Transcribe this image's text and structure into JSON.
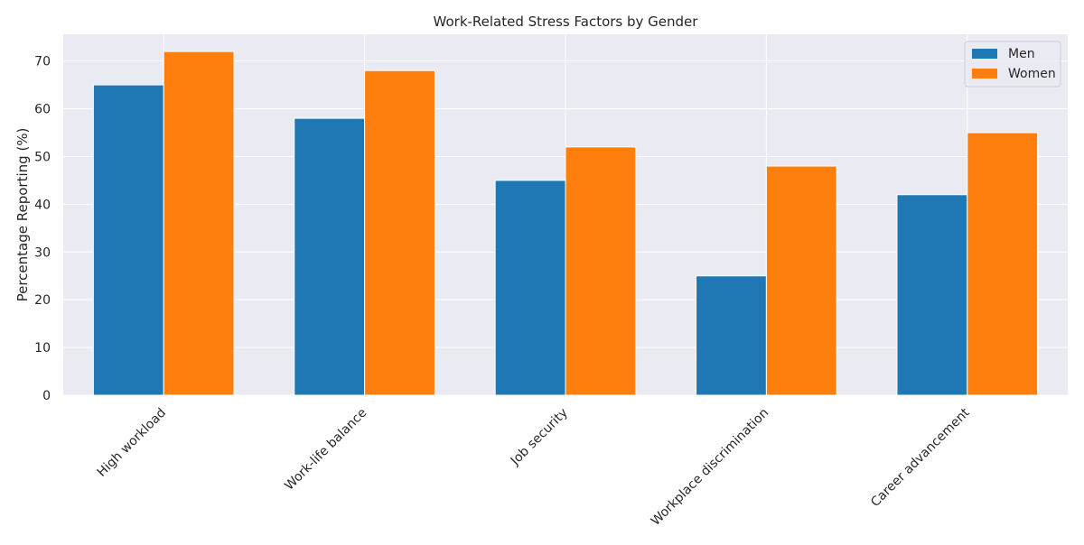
{
  "chart_data": {
    "type": "bar",
    "title": "Work-Related Stress Factors by Gender",
    "xlabel": "",
    "ylabel": "Percentage Reporting (%)",
    "categories": [
      "High workload",
      "Work-life balance",
      "Job security",
      "Workplace discrimination",
      "Career advancement"
    ],
    "series": [
      {
        "name": "Men",
        "values": [
          65,
          58,
          45,
          25,
          42
        ],
        "color": "#1f77b4"
      },
      {
        "name": "Women",
        "values": [
          72,
          68,
          52,
          48,
          55
        ],
        "color": "#ff7f0e"
      }
    ],
    "ylim": [
      0,
      75.6
    ],
    "yticks": [
      0,
      10,
      20,
      30,
      40,
      50,
      60,
      70
    ],
    "grid": true,
    "legend_position": "top-right",
    "plot_background": "#eaeaf2",
    "grid_color": "#ffffff"
  }
}
